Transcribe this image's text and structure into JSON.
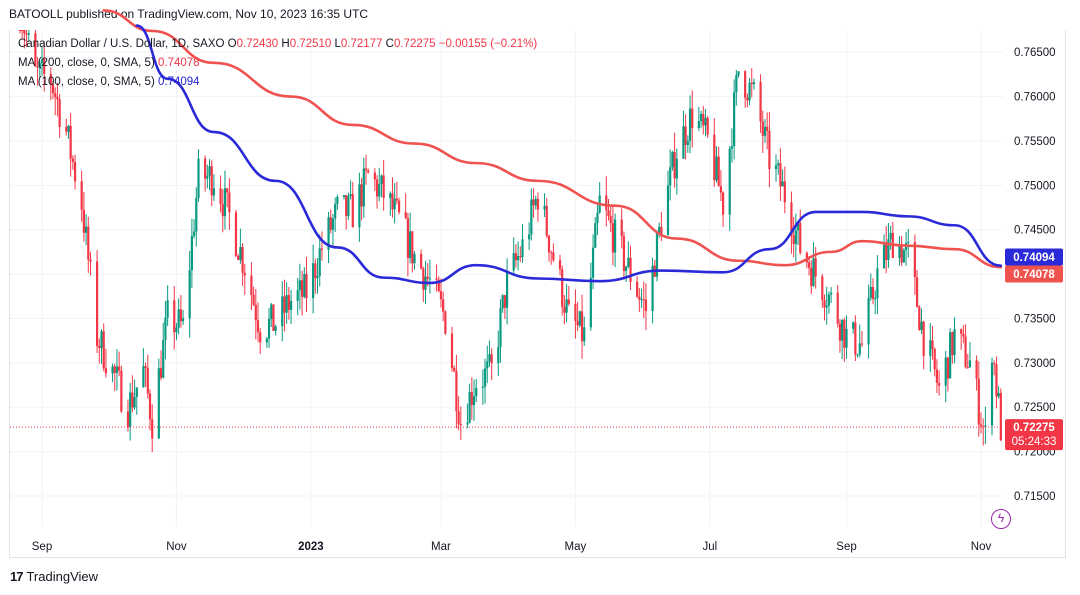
{
  "header": {
    "published": "BATOOLL published on TradingView.com, Nov 10, 2023 16:35 UTC"
  },
  "legend": {
    "symbol": "Canadian Dollar / U.S. Dollar, 1D, SAXO",
    "o_label": "O",
    "o": "0.72430",
    "h_label": "H",
    "h": "0.72510",
    "l_label": "L",
    "l": "0.72177",
    "c_label": "C",
    "c": "0.72275",
    "change": "−0.00155 (−0.21%)",
    "ma200_label": "MA (200, close, 0, SMA, 5)",
    "ma200_value": "0.74078",
    "ma100_label": "MA (100, close, 0, SMA, 5)",
    "ma100_value": "0.74094"
  },
  "footer": {
    "brand": "TradingView",
    "logo": "17"
  },
  "icons": {
    "bolt": "lightning-bolt-icon"
  },
  "colors": {
    "up": "#089981",
    "down": "#f23645",
    "ma200": "#ef5350",
    "ma100": "#2a2ad8",
    "grid": "#f0f3fa"
  },
  "chart_data": {
    "type": "candlestick",
    "title": "Canadian Dollar / U.S. Dollar, 1D, SAXO",
    "x_tick_labels": [
      "Sep",
      "Nov",
      "2023",
      "Mar",
      "May",
      "Jul",
      "Sep",
      "Nov"
    ],
    "y_tick_labels": [
      "0.76500",
      "0.76000",
      "0.75500",
      "0.75000",
      "0.74500",
      "0.74000",
      "0.73500",
      "0.73000",
      "0.72500",
      "0.72000",
      "0.71500"
    ],
    "ylim": [
      0.7115,
      0.7675
    ],
    "price_labels": {
      "ma100": {
        "value": 0.74094,
        "text": "0.74094"
      },
      "ma200": {
        "value": 0.74078,
        "text": "0.74078"
      },
      "last": {
        "value": 0.72275,
        "text": "0.72275",
        "countdown": "05:24:33"
      }
    },
    "close_path": [
      [
        "Aug 22",
        0.77
      ],
      [
        "Aug 29",
        0.7625
      ],
      [
        "Sep 5",
        0.762
      ],
      [
        "Sep 12",
        0.756
      ],
      [
        "Sep 19",
        0.748
      ],
      [
        "Sep 26",
        0.733
      ],
      [
        "Oct 3",
        0.729
      ],
      [
        "Oct 10",
        0.725
      ],
      [
        "Oct 17",
        0.729
      ],
      [
        "Oct 21",
        0.7235
      ],
      [
        "Oct 28",
        0.735
      ],
      [
        "Nov 4",
        0.734
      ],
      [
        "Nov 11",
        0.751
      ],
      [
        "Nov 18",
        0.751
      ],
      [
        "Nov 25",
        0.7465
      ],
      [
        "Dec 2",
        0.741
      ],
      [
        "Dec 9",
        0.734
      ],
      [
        "Dec 16",
        0.7345
      ],
      [
        "Dec 23",
        0.737
      ],
      [
        "Dec 30",
        0.738
      ],
      [
        "Jan 6",
        0.743
      ],
      [
        "Jan 13",
        0.747
      ],
      [
        "Jan 20",
        0.747
      ],
      [
        "Jan 27",
        0.751
      ],
      [
        "Feb 3",
        0.749
      ],
      [
        "Feb 10",
        0.746
      ],
      [
        "Feb 17",
        0.742
      ],
      [
        "Feb 24",
        0.739
      ],
      [
        "Mar 3",
        0.735
      ],
      [
        "Mar 10",
        0.7235
      ],
      [
        "Mar 17",
        0.728
      ],
      [
        "Mar 24",
        0.729
      ],
      [
        "Mar 31",
        0.739
      ],
      [
        "Apr 7",
        0.743
      ],
      [
        "Apr 14",
        0.749
      ],
      [
        "Apr 21",
        0.742
      ],
      [
        "Apr 28",
        0.735
      ],
      [
        "May 5",
        0.733
      ],
      [
        "May 12",
        0.748
      ],
      [
        "May 19",
        0.744
      ],
      [
        "May 26",
        0.74
      ],
      [
        "Jun 2",
        0.736
      ],
      [
        "Jun 9",
        0.746
      ],
      [
        "Jun 16",
        0.754
      ],
      [
        "Jun 23",
        0.758
      ],
      [
        "Jun 30",
        0.755
      ],
      [
        "Jul 7",
        0.748
      ],
      [
        "Jul 14",
        0.763
      ],
      [
        "Jul 21",
        0.76
      ],
      [
        "Jul 28",
        0.753
      ],
      [
        "Aug 4",
        0.749
      ],
      [
        "Aug 11",
        0.743
      ],
      [
        "Aug 18",
        0.74
      ],
      [
        "Aug 25",
        0.737
      ],
      [
        "Sep 1",
        0.733
      ],
      [
        "Sep 8",
        0.732
      ],
      [
        "Sep 15",
        0.74
      ],
      [
        "Sep 22",
        0.744
      ],
      [
        "Sep 29",
        0.742
      ],
      [
        "Oct 6",
        0.733
      ],
      [
        "Oct 13",
        0.727
      ],
      [
        "Oct 20",
        0.733
      ],
      [
        "Oct 27",
        0.73
      ],
      [
        "Nov 3",
        0.7215
      ],
      [
        "Nov 6",
        0.732
      ],
      [
        "Nov 10",
        0.72275
      ]
    ],
    "ma200_path": [
      [
        "Sep 29",
        0.7697
      ],
      [
        "Oct 21",
        0.7674
      ],
      [
        "Nov 18",
        0.7638
      ],
      [
        "Dec 23",
        0.76
      ],
      [
        "Jan 20",
        0.7568
      ],
      [
        "Feb 17",
        0.7547
      ],
      [
        "Mar 17",
        0.7525
      ],
      [
        "Apr 14",
        0.7505
      ],
      [
        "May 19",
        0.7477
      ],
      [
        "Jun 16",
        0.744
      ],
      [
        "Jul 14",
        0.7415
      ],
      [
        "Aug 4",
        0.741
      ],
      [
        "Aug 25",
        0.7425
      ],
      [
        "Sep 8",
        0.7437
      ],
      [
        "Sep 29",
        0.7432
      ],
      [
        "Oct 20",
        0.7428
      ],
      [
        "Nov 10",
        0.74078
      ]
    ],
    "ma100_path": [
      [
        "Oct 14",
        0.768
      ],
      [
        "Oct 28",
        0.762
      ],
      [
        "Nov 18",
        0.756
      ],
      [
        "Dec 16",
        0.7505
      ],
      [
        "Jan 13",
        0.743
      ],
      [
        "Feb 3",
        0.7396
      ],
      [
        "Feb 24",
        0.739
      ],
      [
        "Mar 17",
        0.741
      ],
      [
        "Apr 14",
        0.7395
      ],
      [
        "May 12",
        0.7392
      ],
      [
        "Jun 9",
        0.7404
      ],
      [
        "Jul 7",
        0.7402
      ],
      [
        "Jul 28",
        0.7428
      ],
      [
        "Aug 18",
        0.747
      ],
      [
        "Sep 8",
        0.747
      ],
      [
        "Sep 29",
        0.7465
      ],
      [
        "Oct 20",
        0.7455
      ],
      [
        "Nov 10",
        0.74094
      ]
    ]
  }
}
